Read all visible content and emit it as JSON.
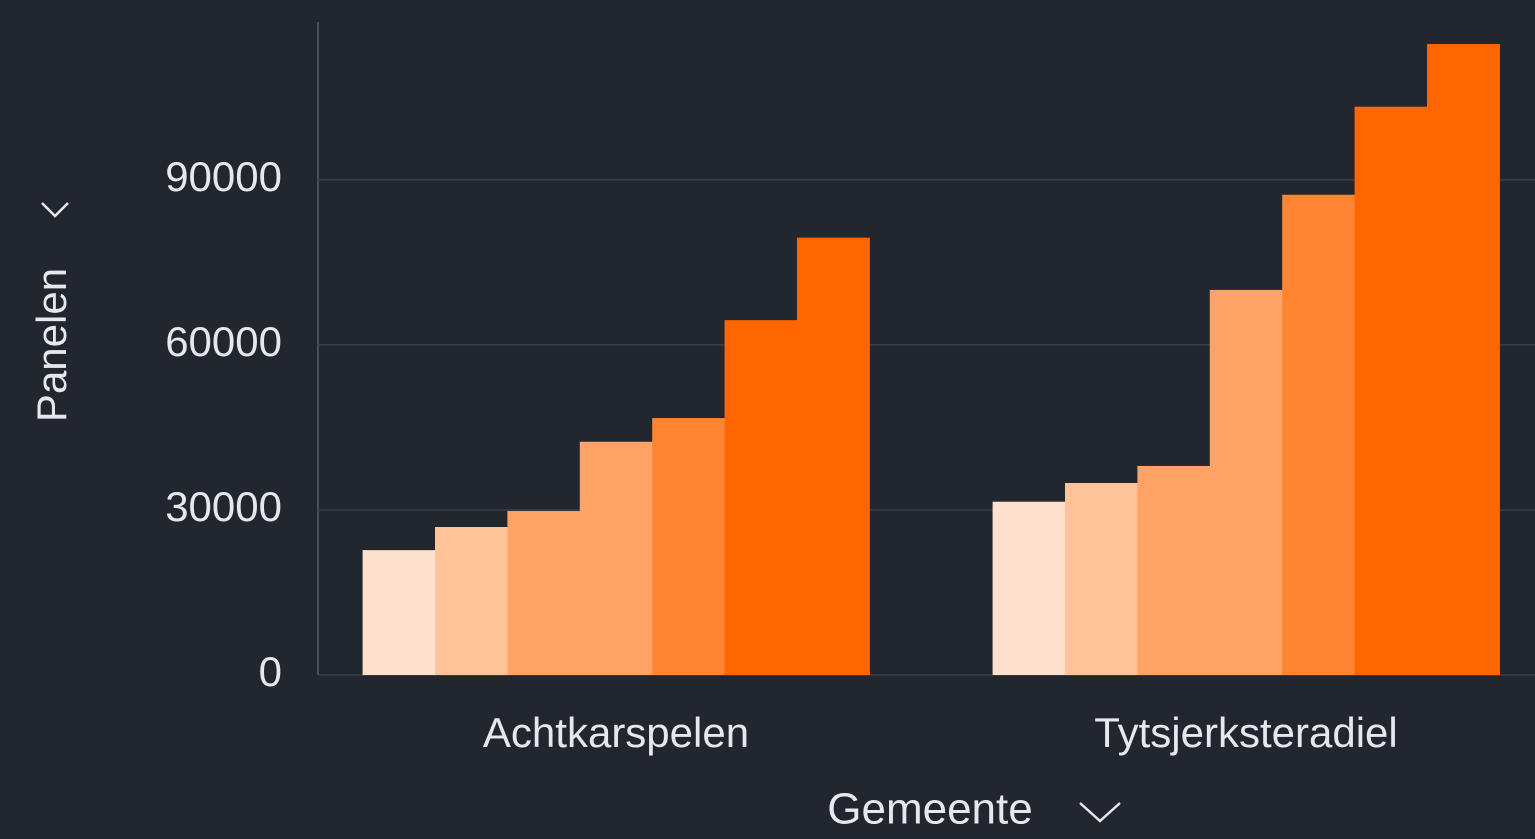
{
  "chart_data": {
    "type": "bar",
    "x_label": "Gemeente",
    "y_label": "Panelen",
    "categories": [
      "Achtkarspelen",
      "Tytsjerksteradiel"
    ],
    "series": [
      {
        "color": "#ffe0cc",
        "values": [
          22700,
          31500
        ]
      },
      {
        "color": "#ffc299",
        "values": [
          26900,
          34900
        ]
      },
      {
        "color": "#ffa366",
        "values": [
          29800,
          38000
        ]
      },
      {
        "color": "#ffa366",
        "values": [
          42400,
          70000
        ]
      },
      {
        "color": "#ff8533",
        "values": [
          46700,
          87300
        ]
      },
      {
        "color": "#ff6600",
        "values": [
          64500,
          103300
        ]
      },
      {
        "color": "#ff6600",
        "values": [
          79500,
          114700
        ]
      }
    ],
    "ylim": [
      0,
      118700
    ],
    "yticks": [
      0,
      30000,
      60000,
      90000
    ],
    "grid": true
  }
}
